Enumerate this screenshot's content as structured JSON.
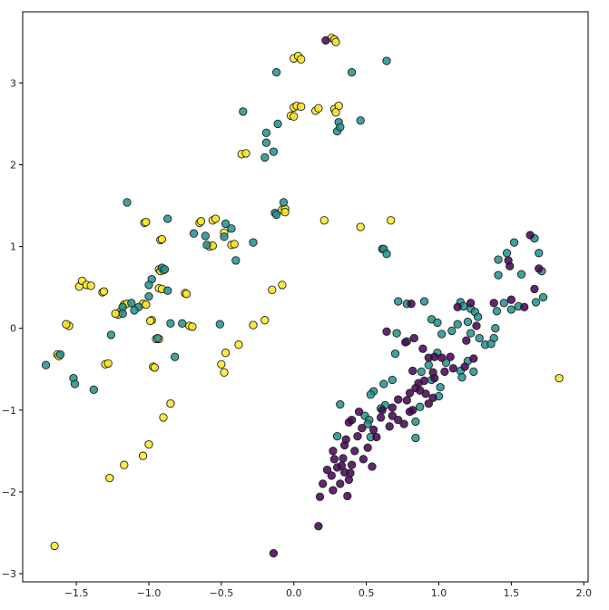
{
  "chart_data": {
    "type": "scatter",
    "title": "",
    "xlabel": "",
    "ylabel": "",
    "xlim": [
      -1.87,
      2.03
    ],
    "ylim": [
      -3.1,
      3.87
    ],
    "grid": false,
    "xticks": [
      -1.5,
      -1.0,
      -0.5,
      0.0,
      0.5,
      1.0,
      1.5,
      2.0
    ],
    "xtick_labels": [
      "−1.5",
      "−1.0",
      "−0.5",
      "0.0",
      "0.5",
      "1.0",
      "1.5",
      "2.0"
    ],
    "yticks": [
      -3,
      -2,
      -1,
      0,
      1,
      2,
      3
    ],
    "ytick_labels": [
      "−3",
      "−2",
      "−1",
      "0",
      "1",
      "2",
      "3"
    ],
    "colors": {
      "purple": "#440154",
      "teal": "#21918c",
      "yellow": "#fde725",
      "edge": "#222222"
    },
    "series": [
      {
        "color": "#fde725",
        "points": [
          [
            0.26,
            3.55
          ],
          [
            0.28,
            3.53
          ],
          [
            0.29,
            3.5
          ],
          [
            0.0,
            3.3
          ],
          [
            0.03,
            3.33
          ],
          [
            0.05,
            3.29
          ],
          [
            0.0,
            2.7
          ],
          [
            0.02,
            2.72
          ],
          [
            0.05,
            2.71
          ],
          [
            -0.02,
            2.6
          ],
          [
            0.0,
            2.59
          ],
          [
            0.15,
            2.66
          ],
          [
            0.17,
            2.69
          ],
          [
            0.28,
            2.68
          ],
          [
            0.31,
            2.72
          ],
          [
            0.29,
            2.64
          ],
          [
            -0.36,
            2.13
          ],
          [
            -0.33,
            2.14
          ],
          [
            -1.03,
            1.29
          ],
          [
            -1.02,
            1.3
          ],
          [
            -0.65,
            1.29
          ],
          [
            -0.64,
            1.31
          ],
          [
            -0.56,
            1.32
          ],
          [
            -0.54,
            1.34
          ],
          [
            -0.48,
            1.17
          ],
          [
            -0.43,
            1.02
          ],
          [
            -0.41,
            1.03
          ],
          [
            -0.58,
            1.0
          ],
          [
            -0.56,
            1.01
          ],
          [
            -0.92,
            1.08
          ],
          [
            -0.91,
            1.09
          ],
          [
            -0.08,
            1.45
          ],
          [
            -0.06,
            1.46
          ],
          [
            -0.06,
            1.42
          ],
          [
            0.21,
            1.32
          ],
          [
            0.46,
            1.24
          ],
          [
            0.67,
            1.32
          ],
          [
            -1.48,
            0.51
          ],
          [
            -1.46,
            0.58
          ],
          [
            -1.43,
            0.53
          ],
          [
            -1.4,
            0.52
          ],
          [
            -1.32,
            0.44
          ],
          [
            -1.31,
            0.45
          ],
          [
            -0.93,
            0.72
          ],
          [
            -0.92,
            0.7
          ],
          [
            -0.9,
            0.71
          ],
          [
            -1.17,
            0.29
          ],
          [
            -1.15,
            0.3
          ],
          [
            -1.2,
            0.2
          ],
          [
            -1.21,
            0.17
          ],
          [
            -1.23,
            0.18
          ],
          [
            -1.04,
            0.3
          ],
          [
            -1.02,
            0.29
          ],
          [
            -0.93,
            0.49
          ],
          [
            -0.91,
            0.48
          ],
          [
            -0.75,
            0.43
          ],
          [
            -0.74,
            0.42
          ],
          [
            -0.98,
            0.1
          ],
          [
            -0.99,
            0.09
          ],
          [
            -0.72,
            0.03
          ],
          [
            -0.7,
            0.02
          ],
          [
            -1.55,
            0.03
          ],
          [
            -1.57,
            0.05
          ],
          [
            -1.63,
            -0.32
          ],
          [
            -1.62,
            -0.34
          ],
          [
            -0.95,
            -0.13
          ],
          [
            -0.93,
            -0.13
          ],
          [
            -0.97,
            -0.47
          ],
          [
            -0.96,
            -0.48
          ],
          [
            -1.3,
            -0.44
          ],
          [
            -1.28,
            -0.43
          ],
          [
            -0.15,
            0.47
          ],
          [
            -0.08,
            0.53
          ],
          [
            -0.28,
            0.04
          ],
          [
            -0.2,
            0.1
          ],
          [
            -0.38,
            -0.2
          ],
          [
            -0.47,
            -0.3
          ],
          [
            -0.5,
            -0.44
          ],
          [
            -0.48,
            -0.54
          ],
          [
            -0.85,
            -0.92
          ],
          [
            -0.9,
            -1.09
          ],
          [
            -1.0,
            -1.42
          ],
          [
            -1.04,
            -1.56
          ],
          [
            -1.17,
            -1.67
          ],
          [
            -1.27,
            -1.83
          ],
          [
            -1.65,
            -2.66
          ],
          [
            1.83,
            -0.61
          ]
        ]
      },
      {
        "color": "#21918c",
        "points": [
          [
            0.64,
            3.27
          ],
          [
            0.4,
            3.13
          ],
          [
            -0.12,
            3.13
          ],
          [
            0.46,
            2.54
          ],
          [
            0.31,
            2.52
          ],
          [
            0.3,
            2.41
          ],
          [
            0.32,
            2.46
          ],
          [
            -0.35,
            2.65
          ],
          [
            -0.11,
            2.5
          ],
          [
            -0.19,
            2.39
          ],
          [
            -0.19,
            2.27
          ],
          [
            -0.2,
            2.09
          ],
          [
            -0.14,
            2.16
          ],
          [
            -1.15,
            1.54
          ],
          [
            -0.07,
            1.54
          ],
          [
            -0.13,
            1.41
          ],
          [
            -0.12,
            1.39
          ],
          [
            -0.87,
            1.34
          ],
          [
            -0.47,
            1.28
          ],
          [
            -0.43,
            1.22
          ],
          [
            -0.48,
            1.12
          ],
          [
            -0.69,
            1.16
          ],
          [
            -0.61,
            1.13
          ],
          [
            -0.6,
            1.02
          ],
          [
            -0.28,
            1.05
          ],
          [
            -0.4,
            0.83
          ],
          [
            0.61,
            0.97
          ],
          [
            0.62,
            0.97
          ],
          [
            0.64,
            0.91
          ],
          [
            -0.91,
            0.74
          ],
          [
            -0.89,
            0.72
          ],
          [
            -0.98,
            0.6
          ],
          [
            -1.0,
            0.53
          ],
          [
            -0.87,
            0.46
          ],
          [
            -1.0,
            0.39
          ],
          [
            -1.12,
            0.31
          ],
          [
            -1.18,
            0.26
          ],
          [
            -1.07,
            0.26
          ],
          [
            -1.18,
            0.18
          ],
          [
            -1.1,
            0.22
          ],
          [
            -0.85,
            0.06
          ],
          [
            -0.77,
            0.06
          ],
          [
            -0.51,
            0.05
          ],
          [
            -0.94,
            -0.12
          ],
          [
            -1.26,
            -0.08
          ],
          [
            -0.82,
            -0.35
          ],
          [
            -1.61,
            -0.32
          ],
          [
            -1.71,
            -0.45
          ],
          [
            -1.52,
            -0.61
          ],
          [
            -1.51,
            -0.68
          ],
          [
            -1.38,
            -0.75
          ],
          [
            0.72,
            0.33
          ],
          [
            0.78,
            0.3
          ],
          [
            0.9,
            0.33
          ],
          [
            0.71,
            -0.06
          ],
          [
            0.78,
            -0.16
          ],
          [
            0.7,
            -0.31
          ],
          [
            0.95,
            0.11
          ],
          [
            0.99,
            0.07
          ],
          [
            1.02,
            -0.07
          ],
          [
            0.99,
            -0.3
          ],
          [
            1.05,
            -0.42
          ],
          [
            0.93,
            -0.45
          ],
          [
            0.88,
            -0.53
          ],
          [
            0.95,
            -0.63
          ],
          [
            1.01,
            -0.72
          ],
          [
            1.0,
            -0.83
          ],
          [
            0.87,
            -0.96
          ],
          [
            0.84,
            -1.14
          ],
          [
            0.84,
            -1.34
          ],
          [
            0.68,
            -0.63
          ],
          [
            0.62,
            -0.68
          ],
          [
            0.63,
            -0.94
          ],
          [
            0.6,
            -0.98
          ],
          [
            0.55,
            -0.77
          ],
          [
            0.53,
            -0.81
          ],
          [
            0.49,
            -1.07
          ],
          [
            0.52,
            -1.12
          ],
          [
            0.51,
            -1.17
          ],
          [
            0.53,
            -1.33
          ],
          [
            1.15,
            0.32
          ],
          [
            1.17,
            0.27
          ],
          [
            1.22,
            0.24
          ],
          [
            1.25,
            0.2
          ],
          [
            1.27,
            0.14
          ],
          [
            1.2,
            0.08
          ],
          [
            1.22,
            -0.06
          ],
          [
            1.28,
            -0.12
          ],
          [
            1.32,
            -0.2
          ],
          [
            1.2,
            -0.4
          ],
          [
            1.15,
            -0.52
          ],
          [
            1.24,
            -0.53
          ],
          [
            1.16,
            -0.6
          ],
          [
            1.13,
            0.05
          ],
          [
            1.09,
            -0.03
          ],
          [
            1.41,
            0.84
          ],
          [
            1.47,
            0.92
          ],
          [
            1.52,
            1.05
          ],
          [
            1.57,
            0.66
          ],
          [
            1.66,
            1.1
          ],
          [
            1.69,
            0.92
          ],
          [
            1.71,
            0.7
          ],
          [
            1.72,
            0.38
          ],
          [
            1.41,
            0.65
          ],
          [
            1.45,
            0.31
          ],
          [
            1.5,
            0.23
          ],
          [
            1.55,
            0.27
          ],
          [
            1.67,
            0.32
          ],
          [
            1.4,
            0.21
          ],
          [
            1.39,
            0.0
          ],
          [
            1.38,
            -0.12
          ],
          [
            1.36,
            -0.19
          ],
          [
            0.32,
            -0.93
          ],
          [
            0.3,
            -1.32
          ]
        ]
      },
      {
        "color": "#440154",
        "points": [
          [
            0.22,
            3.52
          ],
          [
            0.81,
            0.3
          ],
          [
            0.77,
            -0.17
          ],
          [
            0.82,
            -0.52
          ],
          [
            0.89,
            -0.25
          ],
          [
            0.93,
            -0.36
          ],
          [
            0.97,
            -0.35
          ],
          [
            1.02,
            -0.36
          ],
          [
            1.08,
            -0.35
          ],
          [
            1.04,
            -0.53
          ],
          [
            1.1,
            -0.49
          ],
          [
            0.96,
            -0.54
          ],
          [
            0.9,
            -0.64
          ],
          [
            0.97,
            -0.61
          ],
          [
            0.86,
            -0.67
          ],
          [
            0.84,
            -0.73
          ],
          [
            0.87,
            -0.76
          ],
          [
            0.91,
            -0.8
          ],
          [
            0.96,
            -0.85
          ],
          [
            0.93,
            -0.92
          ],
          [
            0.8,
            -0.79
          ],
          [
            0.78,
            -0.88
          ],
          [
            0.82,
            -1.0
          ],
          [
            0.8,
            -1.02
          ],
          [
            0.76,
            -1.17
          ],
          [
            0.72,
            -0.87
          ],
          [
            0.68,
            -0.97
          ],
          [
            0.68,
            -1.07
          ],
          [
            0.72,
            -1.12
          ],
          [
            0.66,
            -1.2
          ],
          [
            0.61,
            -1.0
          ],
          [
            0.6,
            -1.09
          ],
          [
            0.55,
            -1.24
          ],
          [
            0.57,
            -1.33
          ],
          [
            0.47,
            -1.22
          ],
          [
            0.44,
            -1.32
          ],
          [
            0.51,
            -1.46
          ],
          [
            0.48,
            -1.6
          ],
          [
            0.54,
            -1.69
          ],
          [
            0.42,
            -1.5
          ],
          [
            0.45,
            -1.02
          ],
          [
            0.4,
            -1.12
          ],
          [
            0.38,
            -1.15
          ],
          [
            0.36,
            -1.36
          ],
          [
            0.35,
            -1.43
          ],
          [
            0.34,
            -1.59
          ],
          [
            0.33,
            -1.68
          ],
          [
            0.4,
            -1.67
          ],
          [
            0.39,
            -1.77
          ],
          [
            0.27,
            -1.5
          ],
          [
            0.28,
            -1.6
          ],
          [
            0.3,
            -1.7
          ],
          [
            0.35,
            -1.76
          ],
          [
            0.23,
            -1.73
          ],
          [
            0.26,
            -1.8
          ],
          [
            0.32,
            -1.9
          ],
          [
            0.38,
            -1.85
          ],
          [
            0.37,
            -2.05
          ],
          [
            0.2,
            -1.9
          ],
          [
            0.18,
            -2.06
          ],
          [
            0.27,
            -1.98
          ],
          [
            0.17,
            -2.42
          ],
          [
            -0.14,
            -2.75
          ],
          [
            1.13,
            0.26
          ],
          [
            1.22,
            0.31
          ],
          [
            1.26,
            0.03
          ],
          [
            1.19,
            -0.15
          ],
          [
            1.24,
            -0.37
          ],
          [
            1.18,
            -0.47
          ],
          [
            1.38,
            0.31
          ],
          [
            1.5,
            0.35
          ],
          [
            1.59,
            0.26
          ],
          [
            1.48,
            0.83
          ],
          [
            1.49,
            0.76
          ],
          [
            1.63,
            1.14
          ],
          [
            1.66,
            0.48
          ],
          [
            1.69,
            0.73
          ],
          [
            0.64,
            -0.04
          ],
          [
            0.83,
            -0.12
          ]
        ]
      }
    ]
  }
}
